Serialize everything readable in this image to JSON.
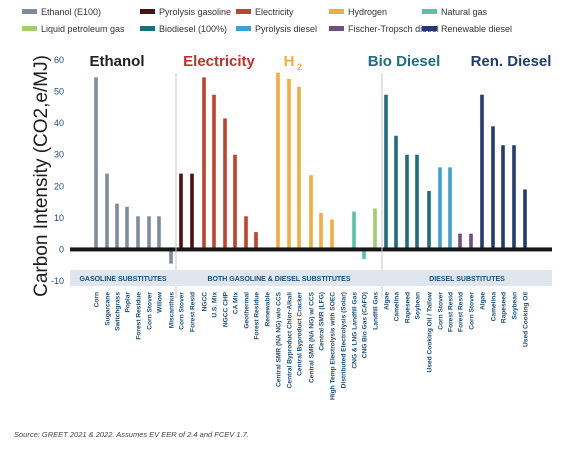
{
  "chart_data": {
    "type": "bar",
    "ylabel": "Carbon Intensity (CO2,e/MJ)",
    "ylim": [
      -10,
      60
    ],
    "yticks": [
      -10,
      0,
      10,
      20,
      30,
      40,
      50,
      60
    ],
    "grid": false,
    "legend_position": "top",
    "source": "Source: GREET 2021 & 2022. Assumes EV EER of 2.4 and FCEV 1.7.",
    "legend": [
      {
        "name": "Ethanol (E100)",
        "color": "#808b9c"
      },
      {
        "name": "Pyrolysis gasoline",
        "color": "#4d1111"
      },
      {
        "name": "Electricity",
        "color": "#c0442b"
      },
      {
        "name": "Hydrogen",
        "color": "#f2ad3d"
      },
      {
        "name": "Natural gas",
        "color": "#55c5a5"
      },
      {
        "name": "Liquid petroleum gas",
        "color": "#9fd06c"
      },
      {
        "name": "Biodiesel (100%)",
        "color": "#1e6e82"
      },
      {
        "name": "Pyrolysis diesel",
        "color": "#3ea0d6"
      },
      {
        "name": "Fischer-Tropsch diesel",
        "color": "#6c4f83"
      },
      {
        "name": "Renewable diesel",
        "color": "#223c72"
      }
    ],
    "group_titles": [
      {
        "text": "Ethanol",
        "color": "#222222"
      },
      {
        "text": "Electricity",
        "color": "#c0312b"
      },
      {
        "text": "H",
        "sub": "2",
        "color": "#f2ad3d"
      },
      {
        "text": "Bio Diesel",
        "color": "#1e6e82"
      },
      {
        "text": "Ren. Diesel",
        "color": "#223c72"
      }
    ],
    "sections": [
      "GASOLINE SUBSTITUTES",
      "BOTH GASOLINE & DIESEL SUBSTITUTES",
      "DIESEL SUBSTITUTES"
    ],
    "series": [
      {
        "name": "Ethanol (E100)",
        "color": "#808b9c",
        "points": [
          {
            "label": "Corn",
            "value": 54.5
          },
          {
            "label": "Sugarcane",
            "value": 24
          },
          {
            "label": "Switchgrass",
            "value": 14.5
          },
          {
            "label": "Poplar",
            "value": 13.5
          },
          {
            "label": "Forest Residue",
            "value": 10.5
          },
          {
            "label": "Corn Stover",
            "value": 10.5
          },
          {
            "label": "Willow",
            "value": 10.5
          },
          {
            "label": "Miscanthus",
            "value": -4.5
          }
        ]
      },
      {
        "name": "Pyrolysis gasoline",
        "color": "#4d1111",
        "points": [
          {
            "label": "Corn Stover",
            "value": 24
          },
          {
            "label": "Forest Resid",
            "value": 24
          }
        ]
      },
      {
        "name": "Electricity",
        "color": "#c0442b",
        "points": [
          {
            "label": "NGCC",
            "value": 54.5
          },
          {
            "label": "U.S. Mix",
            "value": 49
          },
          {
            "label": "NGCC CHP",
            "value": 41.5
          },
          {
            "label": "CA Mix",
            "value": 30
          },
          {
            "label": "Geothermal",
            "value": 10.5
          },
          {
            "label": "Forest Residue",
            "value": 5.5
          },
          {
            "label": "Renewable",
            "value": 0
          }
        ]
      },
      {
        "name": "Hydrogen",
        "color": "#f2ad3d",
        "points": [
          {
            "label": "Central SMR (NA NG) w/o CCS",
            "value": 56
          },
          {
            "label": "Central Byproduct Chlor-Alkali",
            "value": 54
          },
          {
            "label": "Central Byproduct Cracker",
            "value": 51.5
          },
          {
            "label": "Central SMR (NA NG) w/ CCS",
            "value": 23.5
          },
          {
            "label": "Central SMR (LFG)",
            "value": 11.5
          },
          {
            "label": "High Temp Electrolysis with SOEC",
            "value": 9.5
          },
          {
            "label": "Distributed Electrolysis (Solar)",
            "value": 0
          }
        ]
      },
      {
        "name": "Natural gas",
        "color": "#55c5a5",
        "points": [
          {
            "label": "CNG & LNG Landfill Gas",
            "value": 12
          },
          {
            "label": "CNG Bio Gas (CAFO)",
            "value": -3
          }
        ]
      },
      {
        "name": "Liquid petroleum gas",
        "color": "#9fd06c",
        "points": [
          {
            "label": "Landfill Gas",
            "value": 13
          }
        ]
      },
      {
        "name": "Biodiesel (100%)",
        "color": "#1e6e82",
        "points": [
          {
            "label": "Algae",
            "value": 49
          },
          {
            "label": "Camelina",
            "value": 36
          },
          {
            "label": "Rapeseed",
            "value": 30
          },
          {
            "label": "Soybean",
            "value": 30
          },
          {
            "label": "Used Cooking Oil / Tallow",
            "value": 18.5
          }
        ]
      },
      {
        "name": "Pyrolysis diesel",
        "color": "#3ea0d6",
        "points": [
          {
            "label": "Corn Stover",
            "value": 26
          },
          {
            "label": "Forest Resid",
            "value": 26
          }
        ]
      },
      {
        "name": "Fischer-Tropsch diesel",
        "color": "#6c4f83",
        "points": [
          {
            "label": "Forest Resid",
            "value": 5
          },
          {
            "label": "Corn Stover",
            "value": 5
          }
        ]
      },
      {
        "name": "Renewable diesel",
        "color": "#223c72",
        "points": [
          {
            "label": "Algae",
            "value": 49
          },
          {
            "label": "Camelina",
            "value": 39
          },
          {
            "label": "Rapeseed",
            "value": 33
          },
          {
            "label": "Soybean",
            "value": 33
          },
          {
            "label": "Used Cooking Oil",
            "value": 19
          }
        ]
      }
    ]
  }
}
